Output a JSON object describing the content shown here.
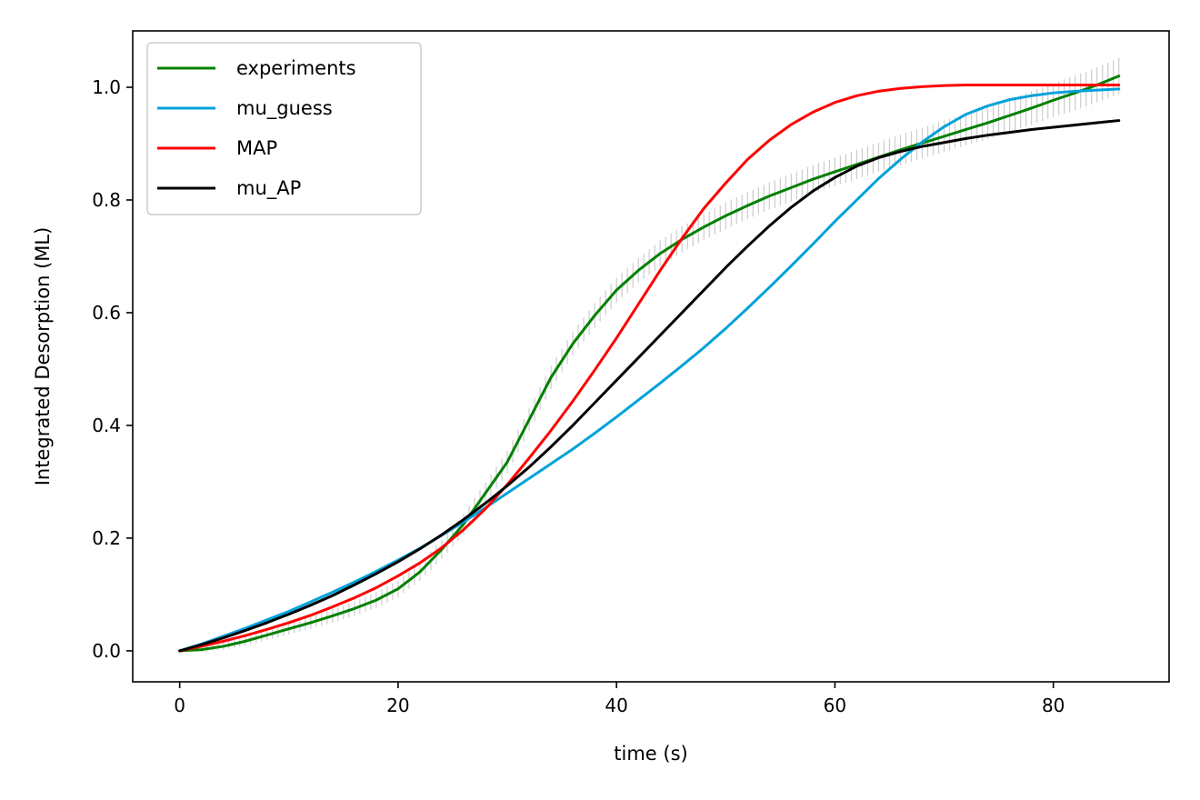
{
  "chart_data": {
    "type": "line",
    "title": "",
    "xlabel": "time (s)",
    "ylabel": "Integrated Desorption (ML)",
    "xlim": [
      -4.3,
      90.6
    ],
    "ylim": [
      -0.055,
      1.1
    ],
    "xticks": [
      0,
      20,
      40,
      60,
      80
    ],
    "yticks": [
      0.0,
      0.2,
      0.4,
      0.6,
      0.8,
      1.0
    ],
    "xtick_labels": [
      "0",
      "20",
      "40",
      "60",
      "80"
    ],
    "ytick_labels": [
      "0.0",
      "0.2",
      "0.4",
      "0.6",
      "0.8",
      "1.0"
    ],
    "grid": false,
    "legend_position": "top-left",
    "error_color": "#cccccc",
    "x": [
      0,
      2,
      4,
      6,
      8,
      10,
      12,
      14,
      16,
      18,
      20,
      22,
      24,
      26,
      28,
      30,
      32,
      34,
      36,
      38,
      40,
      42,
      44,
      46,
      48,
      50,
      52,
      54,
      56,
      58,
      60,
      62,
      64,
      66,
      68,
      70,
      72,
      74,
      76,
      78,
      80,
      82,
      84,
      86
    ],
    "experiments_error": [
      0,
      0.004,
      0.006,
      0.008,
      0.009,
      0.01,
      0.011,
      0.012,
      0.013,
      0.014,
      0.015,
      0.016,
      0.017,
      0.018,
      0.019,
      0.02,
      0.02,
      0.021,
      0.021,
      0.022,
      0.022,
      0.022,
      0.023,
      0.023,
      0.023,
      0.024,
      0.024,
      0.024,
      0.025,
      0.025,
      0.025,
      0.026,
      0.026,
      0.027,
      0.027,
      0.028,
      0.028,
      0.029,
      0.029,
      0.03,
      0.03,
      0.031,
      0.031,
      0.032
    ],
    "series": [
      {
        "name": "experiments",
        "color": "#008000",
        "values": [
          0,
          0.002,
          0.008,
          0.017,
          0.028,
          0.039,
          0.05,
          0.062,
          0.075,
          0.09,
          0.11,
          0.14,
          0.18,
          0.225,
          0.28,
          0.335,
          0.41,
          0.485,
          0.545,
          0.595,
          0.64,
          0.675,
          0.705,
          0.73,
          0.752,
          0.772,
          0.79,
          0.807,
          0.822,
          0.837,
          0.85,
          0.863,
          0.876,
          0.889,
          0.901,
          0.913,
          0.925,
          0.937,
          0.95,
          0.963,
          0.977,
          0.99,
          1.004,
          1.02
        ]
      },
      {
        "name": "mu_guess",
        "color": "#00a2db",
        "values": [
          0,
          0.012,
          0.026,
          0.04,
          0.055,
          0.07,
          0.087,
          0.104,
          0.122,
          0.141,
          0.161,
          0.182,
          0.205,
          0.229,
          0.254,
          0.28,
          0.306,
          0.332,
          0.358,
          0.386,
          0.415,
          0.445,
          0.475,
          0.506,
          0.538,
          0.572,
          0.608,
          0.645,
          0.683,
          0.722,
          0.762,
          0.8,
          0.838,
          0.872,
          0.903,
          0.93,
          0.952,
          0.967,
          0.978,
          0.985,
          0.99,
          0.993,
          0.995,
          0.997
        ]
      },
      {
        "name": "MAP",
        "color": "#ff0000",
        "values": [
          0,
          0.008,
          0.017,
          0.027,
          0.038,
          0.05,
          0.063,
          0.078,
          0.094,
          0.112,
          0.133,
          0.156,
          0.183,
          0.215,
          0.252,
          0.295,
          0.342,
          0.391,
          0.443,
          0.498,
          0.555,
          0.615,
          0.675,
          0.732,
          0.785,
          0.83,
          0.872,
          0.906,
          0.934,
          0.956,
          0.973,
          0.985,
          0.993,
          0.998,
          1.001,
          1.003,
          1.004,
          1.004,
          1.004,
          1.004,
          1.004,
          1.004,
          1.004,
          1.004
        ]
      },
      {
        "name": "mu_AP",
        "color": "#000000",
        "values": [
          0,
          0.011,
          0.023,
          0.036,
          0.05,
          0.065,
          0.081,
          0.098,
          0.117,
          0.137,
          0.158,
          0.181,
          0.206,
          0.233,
          0.262,
          0.293,
          0.326,
          0.362,
          0.4,
          0.44,
          0.48,
          0.52,
          0.56,
          0.6,
          0.64,
          0.68,
          0.718,
          0.754,
          0.787,
          0.816,
          0.84,
          0.86,
          0.875,
          0.886,
          0.895,
          0.902,
          0.909,
          0.915,
          0.92,
          0.925,
          0.929,
          0.933,
          0.937,
          0.941
        ]
      }
    ]
  }
}
